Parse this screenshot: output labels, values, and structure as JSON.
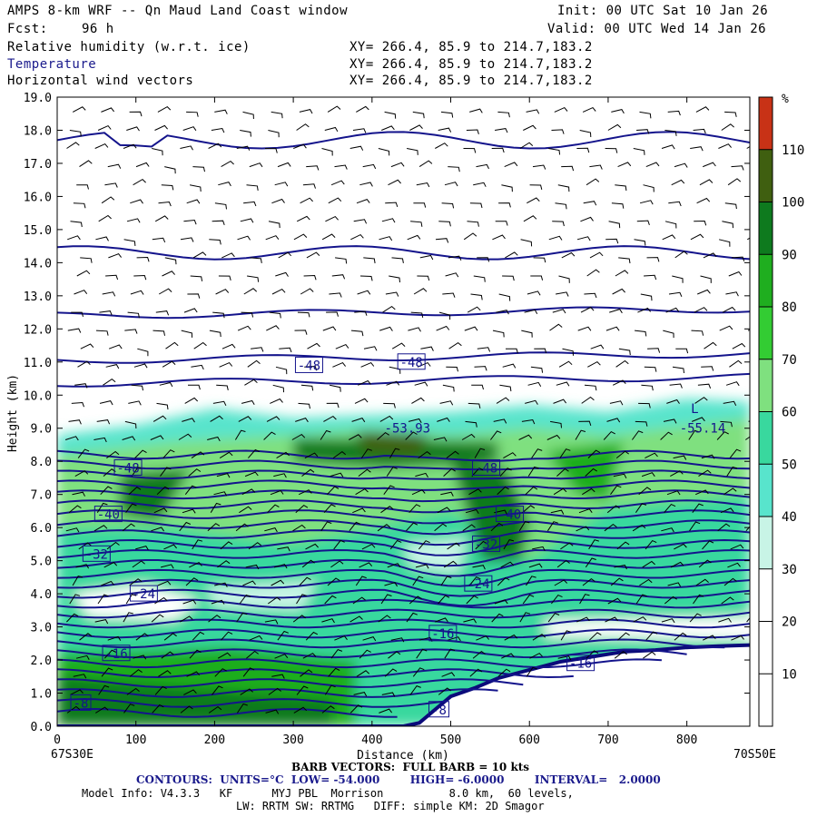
{
  "header": {
    "title": "AMPS 8-km WRF -- Qn Maud Land Coast window",
    "init": "Init: 00 UTC Sat 10 Jan 26",
    "fcst_label": "Fcst:",
    "fcst_value": "96 h",
    "valid": "Valid: 00 UTC Wed 14 Jan 26",
    "fields": [
      {
        "name": "Relative humidity (w.r.t. ice)",
        "xy": "XY= 266.4, 85.9 to 214.7,183.2",
        "color": "#000000"
      },
      {
        "name": "Temperature",
        "xy": "XY= 266.4, 85.9 to 214.7,183.2",
        "color": "#1a1a8c"
      },
      {
        "name": "Horizontal wind vectors",
        "xy": "XY= 266.4, 85.9 to 214.7,183.2",
        "color": "#000000"
      }
    ]
  },
  "chart_data": {
    "type": "heatmap",
    "ylabel": "Height (km)",
    "xlabel": "Distance (km)",
    "xlim": [
      0,
      880
    ],
    "ylim": [
      0,
      19
    ],
    "yticks": [
      "0.0",
      "1.0",
      "2.0",
      "3.0",
      "4.0",
      "5.0",
      "6.0",
      "7.0",
      "8.0",
      "9.0",
      "10.0",
      "11.0",
      "12.0",
      "13.0",
      "14.0",
      "15.0",
      "16.0",
      "17.0",
      "18.0",
      "19.0"
    ],
    "xticks": [
      "0",
      "100",
      "200",
      "300",
      "400",
      "500",
      "600",
      "700",
      "800"
    ],
    "x_start_label": "67S30E",
    "x_end_label": "70S50E",
    "colorbar": {
      "unit": "%",
      "tick_labels": [
        "10",
        "20",
        "30",
        "40",
        "50",
        "60",
        "70",
        "80",
        "90",
        "100",
        "110"
      ],
      "levels": [
        {
          "from": 0,
          "to": 10,
          "color": "#ffffff"
        },
        {
          "from": 10,
          "to": 20,
          "color": "#ffffff"
        },
        {
          "from": 20,
          "to": 30,
          "color": "#ffffff"
        },
        {
          "from": 30,
          "to": 40,
          "color": "#c8f4e6"
        },
        {
          "from": 40,
          "to": 50,
          "color": "#58e4cc"
        },
        {
          "from": 50,
          "to": 60,
          "color": "#39d89e"
        },
        {
          "from": 60,
          "to": 70,
          "color": "#7fe07f"
        },
        {
          "from": 70,
          "to": 80,
          "color": "#33cc33"
        },
        {
          "from": 80,
          "to": 90,
          "color": "#1fae1f"
        },
        {
          "from": 90,
          "to": 100,
          "color": "#0e7a1e"
        },
        {
          "from": 100,
          "to": 110,
          "color": "#3f5f10"
        },
        {
          "from": 110,
          "to": 120,
          "color": "#c83216"
        }
      ]
    },
    "contour_labels": [
      {
        "text": "-48",
        "x": 320,
        "z": 10.9,
        "boxed": true
      },
      {
        "text": "-48",
        "x": 450,
        "z": 11.0,
        "boxed": true
      },
      {
        "text": "-53.93",
        "x": 445,
        "z": 9.0,
        "boxed": false
      },
      {
        "text": "-55.14",
        "x": 820,
        "z": 9.0,
        "boxed": false
      },
      {
        "text": "-48",
        "x": 90,
        "z": 7.8,
        "boxed": true
      },
      {
        "text": "-48",
        "x": 545,
        "z": 7.8,
        "boxed": true
      },
      {
        "text": "-40",
        "x": 65,
        "z": 6.4,
        "boxed": true
      },
      {
        "text": "-40",
        "x": 575,
        "z": 6.4,
        "boxed": true
      },
      {
        "text": "-32",
        "x": 50,
        "z": 5.2,
        "boxed": true
      },
      {
        "text": "-32",
        "x": 545,
        "z": 5.5,
        "boxed": true
      },
      {
        "text": "-24",
        "x": 110,
        "z": 4.0,
        "boxed": true
      },
      {
        "text": "-24",
        "x": 535,
        "z": 4.3,
        "boxed": true
      },
      {
        "text": "-16",
        "x": 75,
        "z": 2.2,
        "boxed": true
      },
      {
        "text": "-16",
        "x": 490,
        "z": 2.8,
        "boxed": true
      },
      {
        "text": "-16",
        "x": 665,
        "z": 1.9,
        "boxed": true
      },
      {
        "text": "-8",
        "x": 30,
        "z": 0.7,
        "boxed": true
      },
      {
        "text": "-8",
        "x": 485,
        "z": 0.5,
        "boxed": true
      },
      {
        "text": "L",
        "x": 810,
        "z": 9.6,
        "boxed": false
      }
    ],
    "terrain": {
      "x": [
        0,
        440,
        460,
        480,
        500,
        530,
        560,
        600,
        640,
        680,
        720,
        760,
        800,
        840,
        880
      ],
      "z": [
        0,
        0,
        0.1,
        0.5,
        0.9,
        1.15,
        1.45,
        1.7,
        1.95,
        2.1,
        2.25,
        2.3,
        2.38,
        2.42,
        2.45
      ]
    }
  },
  "footer": {
    "barb_line": "BARB VECTORS:  FULL BARB = 10 kts",
    "contours_line": "CONTOURS:  UNITS=°C  LOW= -54.000        HIGH= -6.0000        INTERVAL=   2.0000",
    "model_line": "Model Info: V4.3.3   KF      MYJ PBL  Morrison          8.0 km,  60 levels,",
    "physics_line": "LW: RRTM SW: RRTMG   DIFF: simple KM: 2D Smagor"
  }
}
